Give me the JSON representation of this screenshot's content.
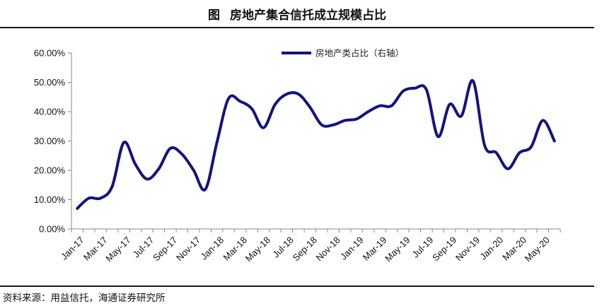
{
  "header": {
    "fig_label": "图",
    "title": "房地产集合信托成立规模占比"
  },
  "footer": {
    "source": "资料来源：用益信托，海通证券研究所"
  },
  "colors": {
    "series": "#13137f",
    "axis": "#888888",
    "text": "#111111"
  },
  "chart_data": {
    "type": "line",
    "title": "房地产集合信托成立规模占比",
    "xlabel": "",
    "ylabel": "",
    "ylim": [
      0,
      60
    ],
    "y_ticks": [
      "0.00%",
      "10.00%",
      "20.00%",
      "30.00%",
      "40.00%",
      "50.00%",
      "60.00%"
    ],
    "x_tick_labels": [
      "Jan-17",
      "Mar-17",
      "May-17",
      "Jul-17",
      "Sep-17",
      "Nov-17",
      "Jan-18",
      "Mar-18",
      "May-18",
      "Jul-18",
      "Sep-18",
      "Nov-18",
      "Jan-19",
      "Mar-19",
      "May-19",
      "Jul-19",
      "Sep-19",
      "Nov-19",
      "Jan-20",
      "Mar-20",
      "May-20"
    ],
    "x": [
      "Jan-17",
      "Feb-17",
      "Mar-17",
      "Apr-17",
      "May-17",
      "Jun-17",
      "Jul-17",
      "Aug-17",
      "Sep-17",
      "Oct-17",
      "Nov-17",
      "Dec-17",
      "Jan-18",
      "Feb-18",
      "Mar-18",
      "Apr-18",
      "May-18",
      "Jun-18",
      "Jul-18",
      "Aug-18",
      "Sep-18",
      "Oct-18",
      "Nov-18",
      "Dec-18",
      "Jan-19",
      "Feb-19",
      "Mar-19",
      "Apr-19",
      "May-19",
      "Jun-19",
      "Jul-19",
      "Aug-19",
      "Sep-19",
      "Oct-19",
      "Nov-19",
      "Dec-19",
      "Jan-20",
      "Feb-20",
      "Mar-20",
      "Apr-20",
      "May-20",
      "Jun-20"
    ],
    "series": [
      {
        "name": "房地产类占比（右轴）",
        "values": [
          7.0,
          10.5,
          10.5,
          14.5,
          29.5,
          22.0,
          17.0,
          20.5,
          27.5,
          25.5,
          20.0,
          13.5,
          29.5,
          44.5,
          43.5,
          41.0,
          34.5,
          42.5,
          46.0,
          46.0,
          41.5,
          35.5,
          35.5,
          37.0,
          37.5,
          40.0,
          42.0,
          42.0,
          47.0,
          48.0,
          47.5,
          31.5,
          42.5,
          38.5,
          50.5,
          28.5,
          26.0,
          20.5,
          26.0,
          28.0,
          37.0,
          30.0
        ]
      }
    ],
    "grid": false,
    "legend_position": "top-center"
  }
}
